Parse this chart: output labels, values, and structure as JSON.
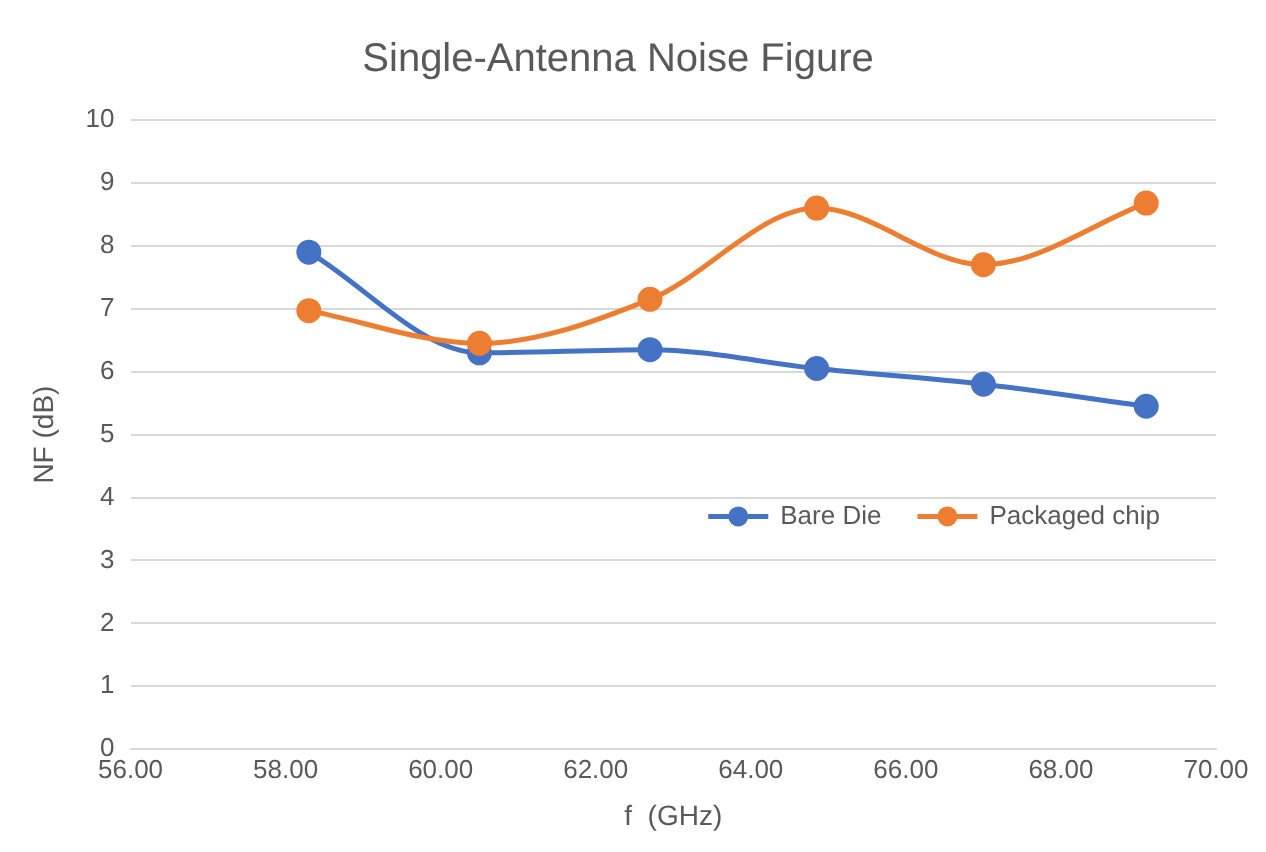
{
  "chart_data": {
    "type": "line",
    "title": "Single-Antenna Noise Figure",
    "xlabel": "f  (GHz)",
    "ylabel": "NF (dB)",
    "x": [
      58.3,
      60.5,
      62.7,
      64.85,
      67.0,
      69.1
    ],
    "series": [
      {
        "name": "Bare Die",
        "color": "#4472c4",
        "values": [
          7.9,
          6.3,
          6.35,
          6.05,
          5.8,
          5.45
        ]
      },
      {
        "name": "Packaged chip",
        "color": "#ed7d31",
        "values": [
          6.97,
          6.45,
          7.15,
          8.6,
          7.7,
          8.68
        ]
      }
    ],
    "xlim": [
      56,
      70
    ],
    "xticks": [
      {
        "value": 56,
        "label": "56.00"
      },
      {
        "value": 58,
        "label": "58.00"
      },
      {
        "value": 60,
        "label": "60.00"
      },
      {
        "value": 62,
        "label": "62.00"
      },
      {
        "value": 64,
        "label": "64.00"
      },
      {
        "value": 66,
        "label": "66.00"
      },
      {
        "value": 68,
        "label": "68.00"
      },
      {
        "value": 70,
        "label": "70.00"
      }
    ],
    "ylim": [
      0,
      10
    ],
    "yticks": [
      0,
      1,
      2,
      3,
      4,
      5,
      6,
      7,
      8,
      9,
      10
    ],
    "grid": "y",
    "legend": "center right",
    "marker": "circle",
    "line_style": "solid"
  }
}
